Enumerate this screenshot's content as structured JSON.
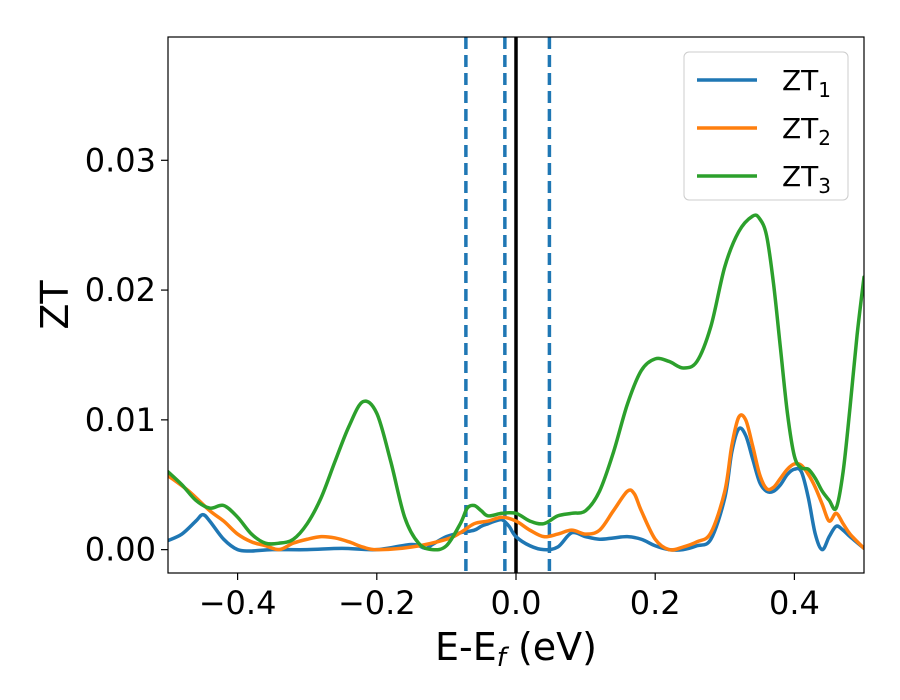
{
  "chart_data": {
    "type": "line",
    "xlabel": "E-E",
    "xlabel_sub": "f",
    "xlabel_unit": " (eV)",
    "ylabel": "ZT",
    "xlim": [
      -0.5,
      0.5
    ],
    "ylim": [
      -0.0018,
      0.0395
    ],
    "xticks": [
      -0.4,
      -0.2,
      0.0,
      0.2,
      0.4
    ],
    "xtick_labels": [
      "−0.4",
      "−0.2",
      "0.0",
      "0.2",
      "0.4"
    ],
    "yticks": [
      0.0,
      0.01,
      0.02,
      0.03
    ],
    "ytick_labels": [
      "0.00",
      "0.01",
      "0.02",
      "0.03"
    ],
    "grid": false,
    "legend_position": "top-right",
    "vertical_lines": [
      {
        "x": -0.072,
        "style": "dashed",
        "color": "#1f77b4"
      },
      {
        "x": -0.016,
        "style": "dashed",
        "color": "#1f77b4"
      },
      {
        "x": 0.0,
        "style": "solid",
        "color": "#000000"
      },
      {
        "x": 0.048,
        "style": "dashed",
        "color": "#1f77b4"
      }
    ],
    "series": [
      {
        "name": "ZT",
        "sub": "1",
        "color": "#1f77b4",
        "x": [
          -0.5,
          -0.48,
          -0.46,
          -0.45,
          -0.44,
          -0.42,
          -0.4,
          -0.38,
          -0.35,
          -0.3,
          -0.25,
          -0.2,
          -0.15,
          -0.13,
          -0.12,
          -0.1,
          -0.08,
          -0.06,
          -0.05,
          -0.04,
          -0.03,
          -0.02,
          -0.01,
          0.0,
          0.02,
          0.04,
          0.06,
          0.08,
          0.1,
          0.12,
          0.14,
          0.16,
          0.18,
          0.2,
          0.22,
          0.24,
          0.26,
          0.28,
          0.3,
          0.31,
          0.32,
          0.33,
          0.34,
          0.35,
          0.36,
          0.37,
          0.38,
          0.39,
          0.4,
          0.41,
          0.42,
          0.43,
          0.44,
          0.45,
          0.46,
          0.47,
          0.48,
          0.5
        ],
        "y": [
          0.0007,
          0.0012,
          0.0022,
          0.0027,
          0.0022,
          0.0008,
          0.0,
          -0.0001,
          0.0,
          0.0,
          0.0001,
          0.0,
          0.0004,
          0.0001,
          0.0004,
          0.001,
          0.0013,
          0.0015,
          0.0018,
          0.002,
          0.0022,
          0.0023,
          0.0018,
          0.001,
          0.0003,
          0.0,
          0.0002,
          0.0013,
          0.001,
          0.0008,
          0.0009,
          0.001,
          0.0008,
          0.0003,
          0.0,
          0.0,
          0.0003,
          0.0008,
          0.004,
          0.0075,
          0.0093,
          0.0088,
          0.007,
          0.0052,
          0.0045,
          0.0045,
          0.005,
          0.0058,
          0.0062,
          0.006,
          0.004,
          0.0012,
          0.0,
          0.001,
          0.0018,
          0.0015,
          0.001,
          0.0001
        ]
      },
      {
        "name": "ZT",
        "sub": "2",
        "color": "#ff7f0e",
        "x": [
          -0.5,
          -0.47,
          -0.44,
          -0.42,
          -0.4,
          -0.38,
          -0.36,
          -0.34,
          -0.32,
          -0.3,
          -0.28,
          -0.26,
          -0.24,
          -0.22,
          -0.2,
          -0.15,
          -0.1,
          -0.08,
          -0.06,
          -0.04,
          -0.02,
          0.0,
          0.02,
          0.04,
          0.06,
          0.08,
          0.1,
          0.12,
          0.14,
          0.16,
          0.17,
          0.18,
          0.2,
          0.22,
          0.24,
          0.26,
          0.28,
          0.3,
          0.31,
          0.32,
          0.33,
          0.34,
          0.35,
          0.36,
          0.37,
          0.38,
          0.39,
          0.4,
          0.41,
          0.42,
          0.43,
          0.44,
          0.45,
          0.46,
          0.47,
          0.48,
          0.5
        ],
        "y": [
          0.0057,
          0.0045,
          0.003,
          0.0022,
          0.0012,
          0.0006,
          0.0003,
          0.0,
          0.0005,
          0.0008,
          0.001,
          0.0009,
          0.0006,
          0.0002,
          0.0,
          0.0002,
          0.0008,
          0.0013,
          0.002,
          0.0022,
          0.0025,
          0.0022,
          0.0015,
          0.001,
          0.0012,
          0.0015,
          0.0012,
          0.0015,
          0.003,
          0.0045,
          0.0043,
          0.003,
          0.0008,
          0.0,
          0.0002,
          0.0006,
          0.0013,
          0.0045,
          0.008,
          0.0102,
          0.01,
          0.008,
          0.0058,
          0.0047,
          0.0048,
          0.0055,
          0.0062,
          0.0066,
          0.0065,
          0.0058,
          0.0048,
          0.0035,
          0.0022,
          0.0028,
          0.002,
          0.0012,
          0.0001
        ]
      },
      {
        "name": "ZT",
        "sub": "3",
        "color": "#2ca02c",
        "x": [
          -0.5,
          -0.48,
          -0.46,
          -0.44,
          -0.42,
          -0.4,
          -0.38,
          -0.36,
          -0.34,
          -0.32,
          -0.3,
          -0.28,
          -0.26,
          -0.24,
          -0.22,
          -0.2,
          -0.18,
          -0.16,
          -0.14,
          -0.12,
          -0.1,
          -0.08,
          -0.07,
          -0.06,
          -0.05,
          -0.04,
          -0.02,
          0.0,
          0.02,
          0.04,
          0.06,
          0.08,
          0.1,
          0.12,
          0.14,
          0.16,
          0.18,
          0.2,
          0.22,
          0.24,
          0.26,
          0.28,
          0.3,
          0.32,
          0.34,
          0.35,
          0.36,
          0.37,
          0.38,
          0.39,
          0.4,
          0.41,
          0.42,
          0.43,
          0.44,
          0.45,
          0.46,
          0.47,
          0.48,
          0.49,
          0.5
        ],
        "y": [
          0.006,
          0.005,
          0.0038,
          0.0032,
          0.0034,
          0.0025,
          0.0012,
          0.0005,
          0.0005,
          0.0008,
          0.002,
          0.004,
          0.0068,
          0.0095,
          0.0114,
          0.0105,
          0.0068,
          0.0025,
          0.0005,
          0.0,
          0.0003,
          0.002,
          0.0032,
          0.0034,
          0.003,
          0.0026,
          0.0028,
          0.0028,
          0.0022,
          0.002,
          0.0026,
          0.0028,
          0.003,
          0.0045,
          0.0075,
          0.0112,
          0.0138,
          0.0147,
          0.0145,
          0.014,
          0.0145,
          0.0172,
          0.0218,
          0.0245,
          0.0257,
          0.0255,
          0.0242,
          0.0205,
          0.0155,
          0.0105,
          0.0072,
          0.0063,
          0.0062,
          0.0055,
          0.0045,
          0.0038,
          0.0032,
          0.006,
          0.011,
          0.0165,
          0.021
        ]
      }
    ]
  }
}
